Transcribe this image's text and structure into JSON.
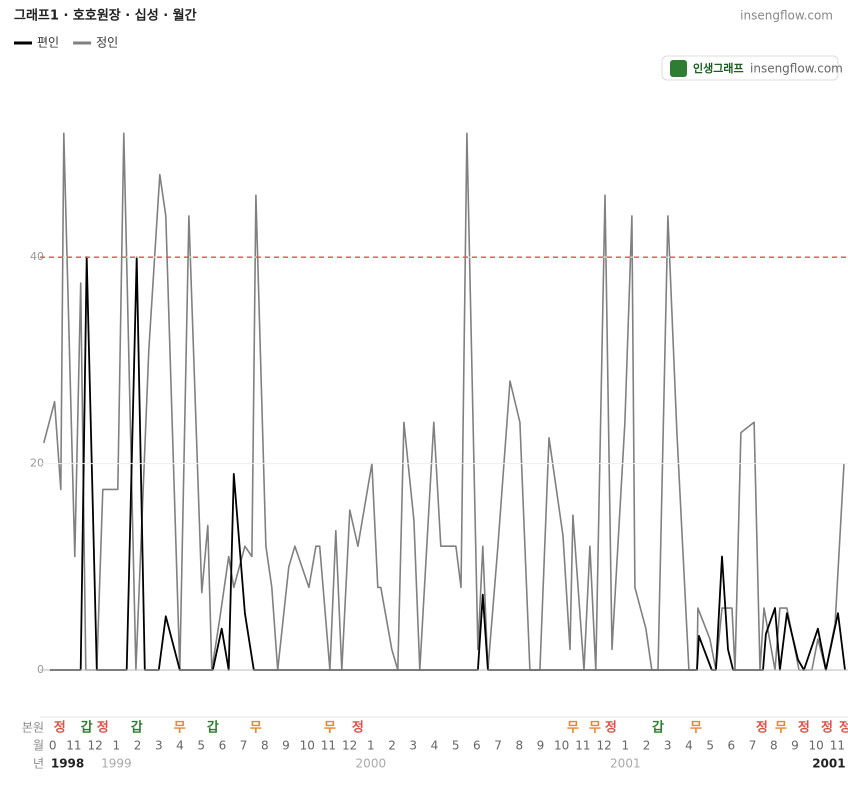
{
  "chart_data": {
    "type": "line",
    "title": "그래프1 · 호호원장 · 십성 · 월간",
    "watermark": "insengflow.com",
    "badge": {
      "brand": "인생그래프",
      "site": "insengflow.com"
    },
    "series": [
      {
        "name": "편인",
        "color": "#000000",
        "x": [
          -0.14,
          1.32,
          1.6,
          2.08,
          3.49,
          3.96,
          4.34,
          5.0,
          5.33,
          5.99,
          7.55,
          7.97,
          8.3,
          8.54,
          9.06,
          9.48,
          20.05,
          20.28,
          20.52,
          30.38,
          30.47,
          31.08,
          31.27,
          31.56,
          31.84,
          32.08,
          33.49,
          33.63,
          34.06,
          34.29,
          34.62,
          35.14,
          35.42,
          36.08,
          36.46,
          37.03,
          37.36
        ],
        "values": [
          0,
          0,
          40,
          0,
          0,
          40,
          0,
          0,
          5.2,
          0,
          0,
          4,
          0,
          19,
          5.5,
          0,
          0,
          7.3,
          0,
          0,
          3.3,
          0,
          0,
          11,
          2,
          0,
          0,
          3.5,
          6,
          0,
          5.5,
          1,
          0,
          4,
          0,
          5.5,
          0
        ]
      },
      {
        "name": "정인",
        "color": "#808080",
        "x": [
          -0.42,
          0.09,
          0.38,
          0.52,
          1.04,
          1.32,
          1.56,
          2.08,
          2.36,
          3.07,
          3.35,
          3.92,
          4.53,
          5.05,
          5.33,
          5.99,
          6.42,
          7.03,
          7.31,
          7.5,
          7.88,
          8.3,
          8.54,
          9.06,
          9.39,
          9.58,
          10.05,
          10.33,
          10.61,
          11.13,
          11.42,
          12.08,
          12.41,
          12.59,
          13.07,
          13.35,
          13.63,
          14.01,
          14.39,
          15.05,
          15.33,
          15.47,
          15.99,
          16.27,
          16.56,
          17.03,
          17.31,
          17.97,
          18.3,
          19.01,
          19.25,
          19.53,
          20.05,
          20.28,
          20.52,
          20.99,
          21.56,
          22.03,
          22.5,
          22.97,
          23.4,
          24.06,
          24.39,
          24.53,
          25.05,
          25.33,
          25.61,
          26.04,
          26.37,
          26.98,
          27.31,
          27.45,
          27.97,
          28.25,
          28.54,
          29.01,
          29.43,
          30.0,
          30.38,
          30.42,
          30.99,
          31.27,
          31.56,
          32.03,
          32.17,
          32.45,
          33.07,
          33.35,
          33.54,
          34.06,
          34.29,
          34.62,
          35.19,
          35.8,
          36.08,
          36.46,
          36.89,
          37.31
        ],
        "values": [
          22,
          26,
          17.5,
          52,
          11,
          37.5,
          0,
          0,
          17.5,
          17.5,
          52,
          0,
          31,
          48,
          44,
          0,
          44,
          7.5,
          14,
          0,
          5,
          11,
          8,
          12,
          11,
          46,
          12,
          8,
          0,
          10,
          12,
          8,
          12,
          12,
          0,
          13.5,
          0,
          15.5,
          12,
          20,
          8,
          8,
          2,
          0,
          24,
          14.5,
          0,
          24,
          12,
          12,
          8,
          52,
          2,
          12,
          0,
          12,
          28,
          24,
          0,
          0,
          22.5,
          13,
          2,
          15,
          0,
          12,
          0,
          46,
          2,
          24,
          44,
          8,
          4,
          0,
          0,
          44,
          23,
          0,
          0,
          6,
          3,
          0,
          6,
          6,
          0,
          23,
          24,
          0,
          6,
          0,
          6,
          6,
          0,
          0,
          3,
          0,
          4.5,
          20
        ]
      }
    ],
    "reference_line": {
      "value": 40,
      "color": "#d9534f"
    },
    "xlim": [
      -0.6,
      37.5
    ],
    "ylim": [
      0,
      53
    ],
    "yticks": [
      0,
      20,
      40
    ],
    "grid": true,
    "legend": "top-left",
    "xticks": [
      {
        "value": 0,
        "label": "0"
      },
      {
        "value": 1,
        "label": "11"
      },
      {
        "value": 2,
        "label": "12"
      },
      {
        "value": 3,
        "label": "1"
      },
      {
        "value": 4,
        "label": "2"
      },
      {
        "value": 5,
        "label": "3"
      },
      {
        "value": 6,
        "label": "4"
      },
      {
        "value": 7,
        "label": "5"
      },
      {
        "value": 8,
        "label": "6"
      },
      {
        "value": 9,
        "label": "7"
      },
      {
        "value": 10,
        "label": "8"
      },
      {
        "value": 11,
        "label": "9"
      },
      {
        "value": 12,
        "label": "10"
      },
      {
        "value": 13,
        "label": "11"
      },
      {
        "value": 14,
        "label": "12"
      },
      {
        "value": 15,
        "label": "1"
      },
      {
        "value": 16,
        "label": "2"
      },
      {
        "value": 17,
        "label": "3"
      },
      {
        "value": 18,
        "label": "4"
      },
      {
        "value": 19,
        "label": "5"
      },
      {
        "value": 20,
        "label": "6"
      },
      {
        "value": 21,
        "label": "7"
      },
      {
        "value": 22,
        "label": "8"
      },
      {
        "value": 23,
        "label": "9"
      },
      {
        "value": 24,
        "label": "10"
      },
      {
        "value": 25,
        "label": "11"
      },
      {
        "value": 26,
        "label": "12"
      },
      {
        "value": 27,
        "label": "1"
      },
      {
        "value": 28,
        "label": "2"
      },
      {
        "value": 29,
        "label": "3"
      },
      {
        "value": 30,
        "label": "4"
      },
      {
        "value": 31,
        "label": "5"
      },
      {
        "value": 32,
        "label": "6"
      },
      {
        "value": 33,
        "label": "7"
      },
      {
        "value": 34,
        "label": "8"
      },
      {
        "value": 35,
        "label": "9"
      },
      {
        "value": 36,
        "label": "10"
      },
      {
        "value": 37,
        "label": "11"
      }
    ],
    "row_labels": {
      "stem": "본원",
      "month": "월",
      "year": "년"
    },
    "stem_colors": {
      "정": "#e0514b",
      "갑": "#2e7d32",
      "무": "#e8892a"
    },
    "stems": [
      {
        "x": 0.33,
        "label": "정"
      },
      {
        "x": 1.6,
        "label": "갑"
      },
      {
        "x": 2.36,
        "label": "정"
      },
      {
        "x": 3.96,
        "label": "갑"
      },
      {
        "x": 5.99,
        "label": "무"
      },
      {
        "x": 7.55,
        "label": "갑"
      },
      {
        "x": 9.58,
        "label": "무"
      },
      {
        "x": 13.07,
        "label": "무"
      },
      {
        "x": 14.39,
        "label": "정"
      },
      {
        "x": 24.53,
        "label": "무"
      },
      {
        "x": 25.57,
        "label": "무"
      },
      {
        "x": 26.32,
        "label": "정"
      },
      {
        "x": 28.54,
        "label": "갑"
      },
      {
        "x": 30.33,
        "label": "무"
      },
      {
        "x": 33.44,
        "label": "정"
      },
      {
        "x": 34.34,
        "label": "무"
      },
      {
        "x": 35.42,
        "label": "정"
      },
      {
        "x": 36.51,
        "label": "정"
      },
      {
        "x": 37.36,
        "label": "정"
      }
    ],
    "years": [
      {
        "x": 0.7,
        "label": "1998",
        "bold": true
      },
      {
        "x": 3,
        "label": "1999",
        "bold": false
      },
      {
        "x": 15,
        "label": "2000",
        "bold": false
      },
      {
        "x": 27,
        "label": "2001",
        "bold": false
      },
      {
        "x": 36.6,
        "label": "2001",
        "bold": true
      }
    ]
  }
}
